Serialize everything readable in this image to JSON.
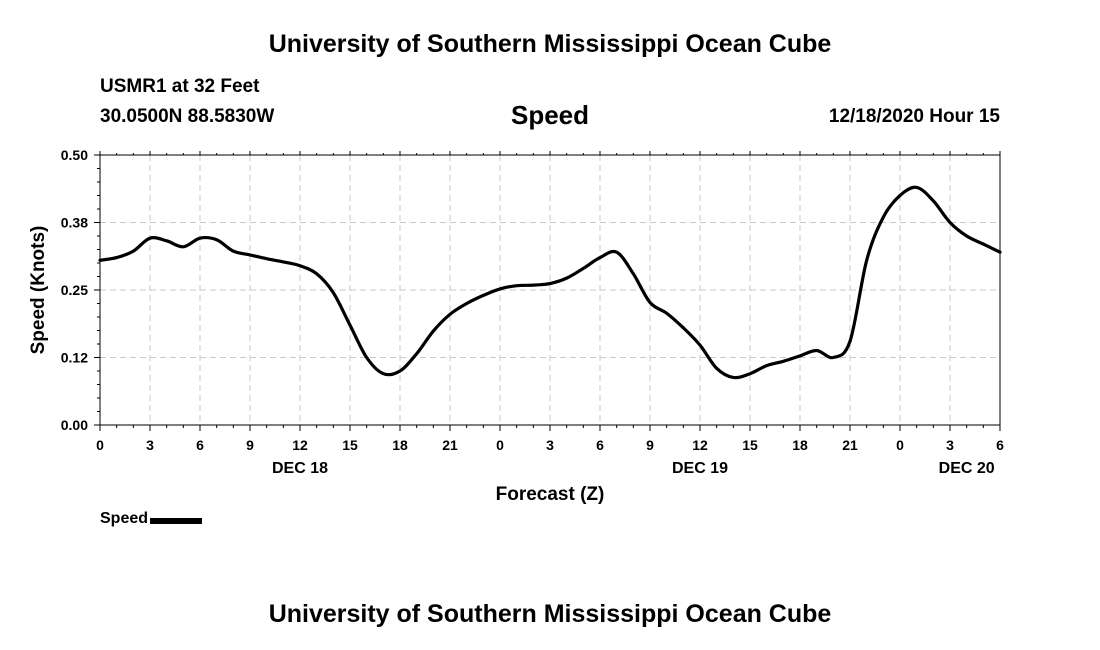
{
  "header": {
    "title": "University of Southern Mississippi Ocean Cube",
    "station": "USMR1 at 32 Feet",
    "coords": "30.0500N 88.5830W",
    "chart_title": "Speed",
    "datetime": "12/18/2020 Hour 15"
  },
  "footer": {
    "title": "University of Southern Mississippi Ocean Cube"
  },
  "legend": {
    "label": "Speed"
  },
  "colors": {
    "line": "#000000",
    "grid": "#c8c8c8",
    "background": "#ffffff"
  },
  "chart_data": {
    "type": "line",
    "title": "Speed",
    "xlabel": "Forecast (Z)",
    "ylabel": "Speed (Knots)",
    "ylim": [
      0,
      0.5
    ],
    "xlim": [
      0,
      54
    ],
    "x_unit": "hours from 00Z DEC 18",
    "yticks": [
      0,
      0.125,
      0.25,
      0.375,
      0.5
    ],
    "ytick_labels": [
      "0.00",
      "0.12",
      "0.25",
      "0.38",
      "0.50"
    ],
    "xticks": [
      0,
      3,
      6,
      9,
      12,
      15,
      18,
      21,
      24,
      27,
      30,
      33,
      36,
      39,
      42,
      45,
      48,
      51,
      54
    ],
    "xtick_labels": [
      "0",
      "3",
      "6",
      "9",
      "12",
      "15",
      "18",
      "21",
      "0",
      "3",
      "6",
      "9",
      "12",
      "15",
      "18",
      "21",
      "0",
      "3",
      "6"
    ],
    "day_labels": [
      {
        "x": 12,
        "label": "DEC 18"
      },
      {
        "x": 36,
        "label": "DEC 19"
      },
      {
        "x": 52,
        "label": "DEC 20"
      }
    ],
    "grid": true,
    "legend_position": "bottom-left",
    "series": [
      {
        "name": "Speed",
        "x": [
          0,
          1,
          2,
          3,
          4,
          5,
          6,
          7,
          8,
          9,
          10,
          11,
          12,
          13,
          14,
          15,
          16,
          17,
          18,
          19,
          20,
          21,
          22,
          23,
          24,
          25,
          26,
          27,
          28,
          29,
          30,
          31,
          32,
          33,
          34,
          35,
          36,
          37,
          38,
          39,
          40,
          41,
          42,
          43,
          44,
          45,
          46,
          47,
          48,
          49,
          50,
          51,
          52,
          53,
          54
        ],
        "values": [
          0.305,
          0.31,
          0.322,
          0.346,
          0.341,
          0.33,
          0.346,
          0.343,
          0.322,
          0.315,
          0.308,
          0.302,
          0.295,
          0.28,
          0.245,
          0.185,
          0.125,
          0.095,
          0.1,
          0.132,
          0.174,
          0.205,
          0.225,
          0.24,
          0.252,
          0.258,
          0.259,
          0.262,
          0.272,
          0.29,
          0.31,
          0.32,
          0.28,
          0.227,
          0.207,
          0.18,
          0.148,
          0.105,
          0.088,
          0.095,
          0.11,
          0.118,
          0.128,
          0.138,
          0.125,
          0.155,
          0.305,
          0.385,
          0.425,
          0.44,
          0.415,
          0.375,
          0.35,
          0.335,
          0.32
        ]
      }
    ]
  }
}
